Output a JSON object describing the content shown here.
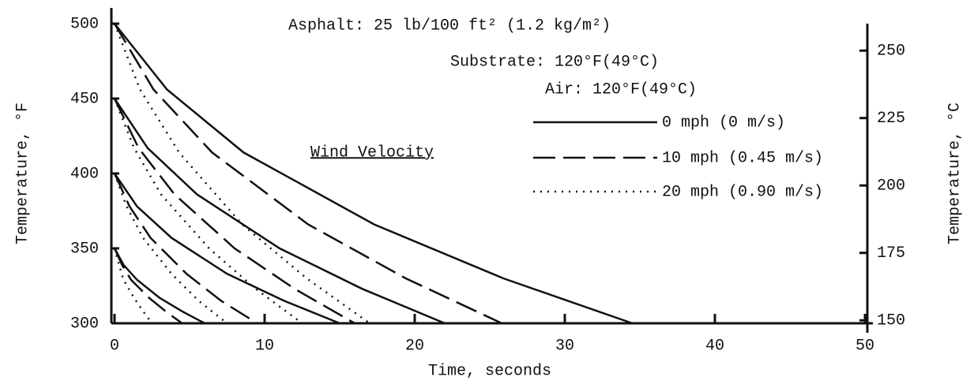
{
  "chart_data": {
    "type": "line",
    "xlabel": "Time, seconds",
    "ylabel": "Temperature, °F",
    "y2label": "Temperature, °C",
    "annotations": [
      "Asphalt:  25 lb/100 ft² (1.2 kg/m²)",
      "Substrate:  120°F(49°C)",
      "Air:  120°F(49°C)"
    ],
    "legend_title": "Wind Velocity",
    "xlim": [
      0,
      50
    ],
    "xticks": [
      0,
      10,
      20,
      30,
      40,
      50
    ],
    "ylim": [
      300,
      500
    ],
    "yticks": [
      300,
      350,
      400,
      450,
      500
    ],
    "y2lim": [
      148.9,
      260
    ],
    "y2ticks": [
      150,
      175,
      200,
      225,
      250
    ],
    "color": "#111111",
    "series": [
      {
        "name": "0 mph (0 m/s)",
        "dash": "solid",
        "curves": [
          {
            "x": [
              0,
              3.5,
              8.6,
              17.3,
              25.9,
              34.5
            ],
            "values": [
              500,
              456,
              414,
              366,
              330,
              300
            ]
          },
          {
            "x": [
              0,
              2.2,
              5.5,
              11,
              16.5,
              22
            ],
            "values": [
              450,
              417,
              386,
              350,
              323,
              300
            ]
          },
          {
            "x": [
              0,
              1.5,
              3.8,
              7.5,
              11.3,
              15
            ],
            "values": [
              400,
              378,
              357,
              333,
              315,
              300
            ]
          },
          {
            "x": [
              0,
              0.6,
              1.5,
              3,
              4.5,
              6
            ],
            "values": [
              350,
              339,
              329,
              317,
              308,
              300
            ]
          }
        ]
      },
      {
        "name": "10 mph (0.45 m/s)",
        "dash": "dashed",
        "curves": [
          {
            "x": [
              0,
              2.6,
              6.5,
              12.9,
              19.4,
              25.8
            ],
            "values": [
              500,
              456,
              414,
              366,
              330,
              300
            ]
          },
          {
            "x": [
              0,
              1.6,
              4,
              8,
              12,
              16
            ],
            "values": [
              450,
              417,
              386,
              350,
              323,
              300
            ]
          },
          {
            "x": [
              0,
              1,
              2.4,
              4.8,
              7.1,
              9.5
            ],
            "values": [
              400,
              378,
              357,
              333,
              315,
              300
            ]
          },
          {
            "x": [
              0,
              0.5,
              1.1,
              2.3,
              3.4,
              4.5
            ],
            "values": [
              350,
              339,
              329,
              317,
              308,
              300
            ]
          }
        ]
      },
      {
        "name": "20 mph (0.90 m/s)",
        "dash": "dotted",
        "curves": [
          {
            "x": [
              0,
              1.7,
              4.3,
              8.5,
              12.8,
              17
            ],
            "values": [
              500,
              456,
              414,
              366,
              330,
              300
            ]
          },
          {
            "x": [
              0,
              1.3,
              3.1,
              6.3,
              9.4,
              12.5
            ],
            "values": [
              450,
              417,
              386,
              350,
              323,
              300
            ]
          },
          {
            "x": [
              0,
              0.8,
              1.9,
              3.8,
              5.6,
              7.5
            ],
            "values": [
              400,
              378,
              357,
              333,
              315,
              300
            ]
          },
          {
            "x": [
              0,
              0.3,
              0.6,
              1.3,
              1.9,
              2.5
            ],
            "values": [
              350,
              339,
              329,
              317,
              308,
              300
            ]
          }
        ]
      }
    ]
  }
}
